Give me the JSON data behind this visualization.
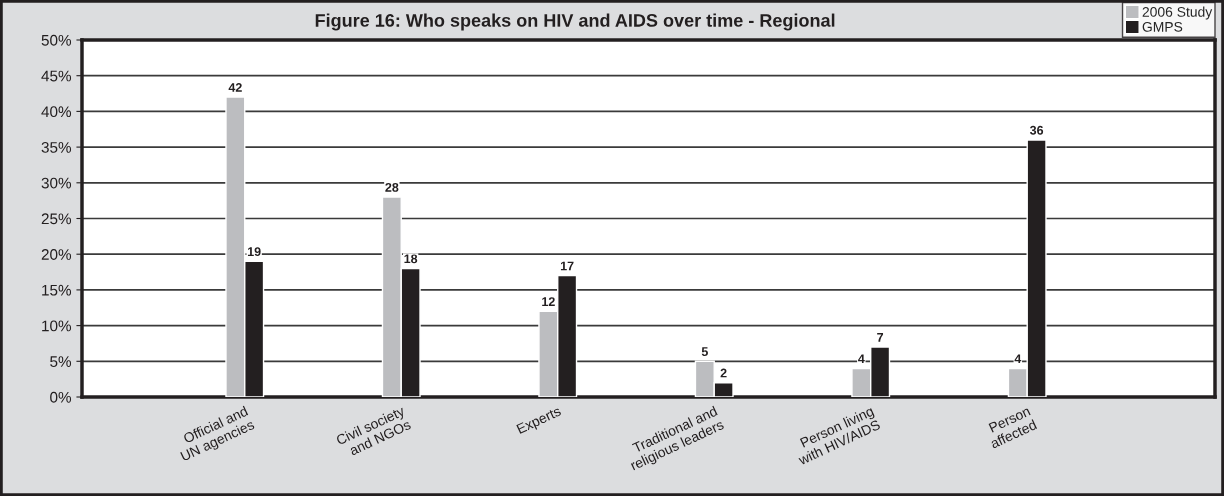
{
  "chart_data": {
    "type": "bar",
    "title": "Figure 16: Who speaks on HIV and AIDS over time - Regional",
    "categories": [
      "Official and\nUN agencies",
      "Civil society\nand NGOs",
      "Experts",
      "Traditional and\nreligious leaders",
      "Person living\nwith HIV/AIDS",
      "Person\naffected"
    ],
    "series": [
      {
        "name": "2006 Study",
        "color": "#bcbdc0",
        "values": [
          42,
          28,
          12,
          5,
          4,
          4
        ]
      },
      {
        "name": "GMPS",
        "color": "#231f20",
        "values": [
          19,
          18,
          17,
          2,
          7,
          36
        ]
      }
    ],
    "data_labels": true,
    "ylim": [
      0,
      50
    ],
    "yticks": [
      {
        "value": 0,
        "label": "0%"
      },
      {
        "value": 5,
        "label": "5%"
      },
      {
        "value": 10,
        "label": "10%"
      },
      {
        "value": 15,
        "label": "15%"
      },
      {
        "value": 20,
        "label": "20%"
      },
      {
        "value": 25,
        "label": "25%"
      },
      {
        "value": 30,
        "label": "30%"
      },
      {
        "value": 35,
        "label": "35%"
      },
      {
        "value": 40,
        "label": "40%"
      },
      {
        "value": 45,
        "label": "45%"
      },
      {
        "value": 50,
        "label": "50%"
      }
    ],
    "grid": "y",
    "legend": "top right"
  }
}
